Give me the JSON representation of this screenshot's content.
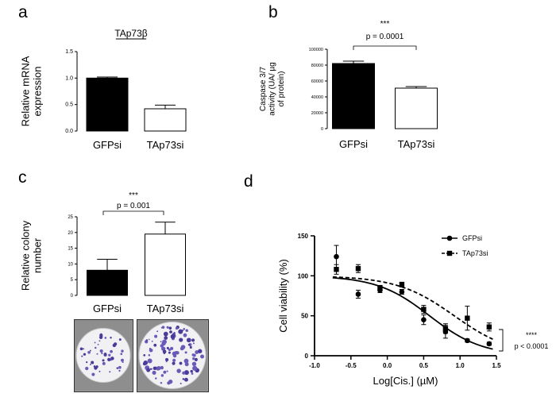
{
  "panels": {
    "a": "a",
    "b": "b",
    "c": "c",
    "d": "d"
  },
  "chart_data": [
    {
      "panel": "a",
      "type": "bar",
      "title": "TAp73β",
      "ylabel": "Relative mRNA expression",
      "ylabel_lines": [
        "Relative mRNA",
        "expression"
      ],
      "xlabel": "",
      "categories": [
        "GFPsi",
        "TAp73si"
      ],
      "values": [
        1.0,
        0.42
      ],
      "errors": [
        0.02,
        0.07
      ],
      "fills": [
        "#000000",
        "#ffffff"
      ],
      "ylim": [
        0,
        1.5
      ],
      "yticks": [
        "0.0",
        "0.5",
        "1.0",
        "1.5"
      ],
      "grid": false
    },
    {
      "panel": "b",
      "type": "bar",
      "title": "",
      "ylabel": "Caspase 3/7 activity (UA/ µg of protein)",
      "ylabel_lines": [
        "Caspase 3/7",
        "activity (UA/ µg",
        "of protein)"
      ],
      "categories": [
        "GFPsi",
        "TAp73si"
      ],
      "values": [
        82000,
        51000
      ],
      "errors": [
        3000,
        2000
      ],
      "fills": [
        "#000000",
        "#ffffff"
      ],
      "ylim": [
        0,
        100000
      ],
      "yticks": [
        "0",
        "20000",
        "40000",
        "60000",
        "80000",
        "100000"
      ],
      "significance": {
        "stars": "***",
        "p": "p = 0.0001"
      },
      "grid": false
    },
    {
      "panel": "c",
      "type": "bar",
      "title": "",
      "ylabel": "Relative colony number",
      "ylabel_lines": [
        "Relative colony",
        "number"
      ],
      "categories": [
        "GFPsi",
        "TAp73si"
      ],
      "values": [
        8,
        19.5
      ],
      "errors": [
        3.5,
        3.8
      ],
      "fills": [
        "#000000",
        "#ffffff"
      ],
      "ylim": [
        0,
        25
      ],
      "yticks": [
        "0",
        "5",
        "10",
        "15",
        "20",
        "25"
      ],
      "significance": {
        "stars": "***",
        "p": "p = 0.001"
      },
      "grid": false
    },
    {
      "panel": "d",
      "type": "scatter",
      "title": "",
      "xlabel": "Log[Cis.] (µM)",
      "ylabel": "Cell viability (%)",
      "xlim": [
        -1.0,
        1.5
      ],
      "ylim": [
        0,
        150
      ],
      "xticks": [
        "-1.0",
        "-0.5",
        "0.0",
        "0.5",
        "1.0",
        "1.5"
      ],
      "yticks": [
        "0",
        "50",
        "100",
        "150"
      ],
      "legend_position": "top-right",
      "series": [
        {
          "name": "GFPsi",
          "marker": "circle",
          "line": "solid",
          "x": [
            -0.7,
            -0.4,
            -0.1,
            0.2,
            0.5,
            0.8,
            1.1,
            1.4
          ],
          "y": [
            124,
            77,
            82,
            80,
            45,
            30,
            19,
            15
          ],
          "err": [
            14,
            5,
            3,
            3,
            6,
            8,
            2,
            2
          ],
          "fit": {
            "top": 100,
            "bottom": 0,
            "logEC50": 0.58,
            "hill": -1.2
          }
        },
        {
          "name": "TAp73si",
          "marker": "square",
          "line": "dashed",
          "x": [
            -0.7,
            -0.4,
            -0.1,
            0.2,
            0.5,
            0.8,
            1.1,
            1.4
          ],
          "y": [
            108,
            109,
            85,
            89,
            58,
            34,
            47,
            36
          ],
          "err": [
            6,
            5,
            3,
            3,
            5,
            6,
            15,
            5
          ],
          "fit": {
            "top": 100,
            "bottom": 0,
            "logEC50": 0.92,
            "hill": -1.1
          }
        }
      ],
      "significance": {
        "stars": "****",
        "p": "p < 0.0001"
      },
      "grid": false
    }
  ],
  "plates": [
    {
      "label": "GFPsi colony plate",
      "dots": 50
    },
    {
      "label": "TAp73si colony plate",
      "dots": 105
    }
  ]
}
